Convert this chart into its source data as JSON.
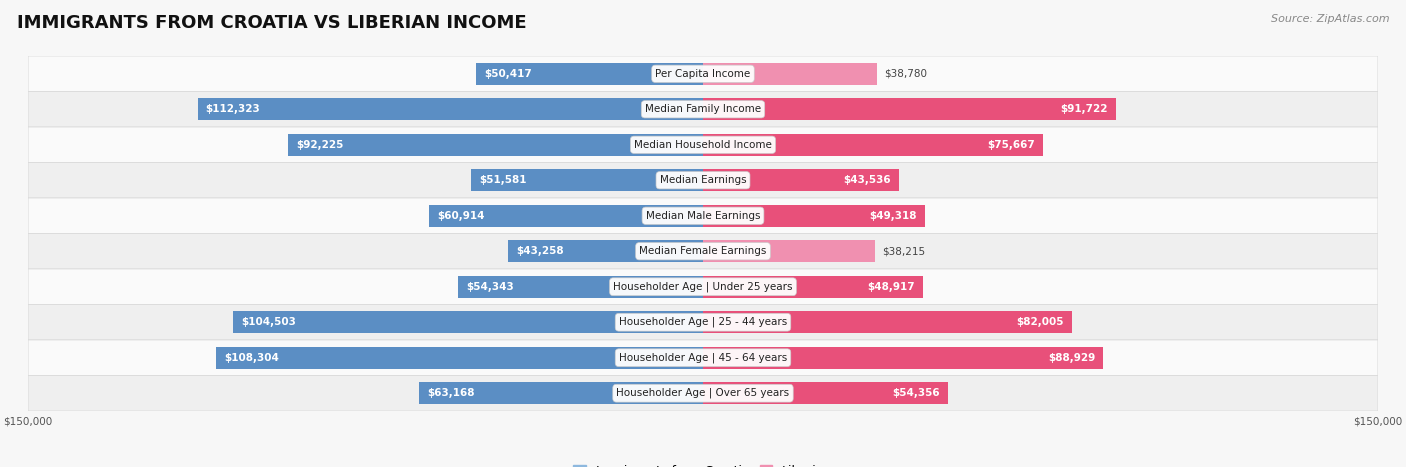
{
  "title": "IMMIGRANTS FROM CROATIA VS LIBERIAN INCOME",
  "source": "Source: ZipAtlas.com",
  "categories": [
    "Per Capita Income",
    "Median Family Income",
    "Median Household Income",
    "Median Earnings",
    "Median Male Earnings",
    "Median Female Earnings",
    "Householder Age | Under 25 years",
    "Householder Age | 25 - 44 years",
    "Householder Age | 45 - 64 years",
    "Householder Age | Over 65 years"
  ],
  "croatia_values": [
    50417,
    112323,
    92225,
    51581,
    60914,
    43258,
    54343,
    104503,
    108304,
    63168
  ],
  "liberian_values": [
    38780,
    91722,
    75667,
    43536,
    49318,
    38215,
    48917,
    82005,
    88929,
    54356
  ],
  "croatia_color": "#8db8de",
  "liberian_color": "#f090b0",
  "croatia_color_strong": "#5b8ec4",
  "liberian_color_strong": "#e8507a",
  "max_value": 150000,
  "bar_height": 0.62,
  "background_color": "#f7f7f7",
  "row_bg_colors": [
    "#fafafa",
    "#efefef"
  ],
  "row_border_color": "#d8d8d8",
  "title_fontsize": 13,
  "label_fontsize": 7.5,
  "value_fontsize": 7.5,
  "legend_fontsize": 9,
  "source_fontsize": 8,
  "inside_threshold": 0.28
}
